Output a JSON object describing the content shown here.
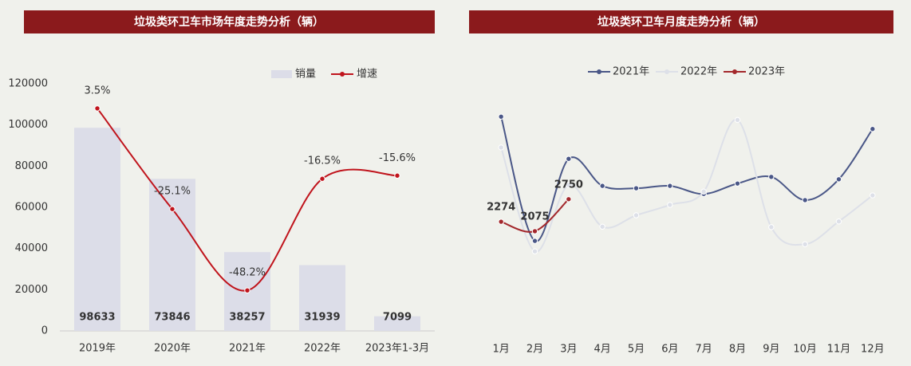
{
  "chart_data": [
    {
      "type": "bar",
      "title": "垃圾类环卫车市场年度走势分析（辆）",
      "categories": [
        "2019年",
        "2020年",
        "2021年",
        "2022年",
        "2023年1-3月"
      ],
      "series": [
        {
          "name": "销量",
          "color": "#dcdde8",
          "values": [
            98633,
            73846,
            38257,
            31939,
            7099
          ]
        },
        {
          "name": "增速",
          "type": "line",
          "axis": "y2",
          "color": "#c0141c",
          "values": [
            3.5,
            -25.1,
            -48.2,
            -16.5,
            -15.6
          ],
          "value_labels": [
            "3.5%",
            "-25.1%",
            "-48.2%",
            "-16.5%",
            "-15.6%"
          ]
        }
      ],
      "ylim": [
        0,
        120000
      ],
      "yticks": [
        0,
        20000,
        40000,
        60000,
        80000,
        100000,
        120000
      ],
      "y2lim": [
        -59.7,
        10.5
      ],
      "legend": "top-right"
    },
    {
      "type": "line",
      "title": "垃圾类环卫车月度走势分析（辆）",
      "categories": [
        "1月",
        "2月",
        "3月",
        "4月",
        "5月",
        "6月",
        "7月",
        "8月",
        "9月",
        "10月",
        "11月",
        "12月"
      ],
      "series": [
        {
          "name": "2021年",
          "color": "#4a5787",
          "values": [
            4490,
            1870,
            3600,
            3030,
            2980,
            3030,
            2860,
            3080,
            3220,
            2730,
            3170,
            4230
          ]
        },
        {
          "name": "2022年",
          "color": "#dde0e8",
          "values": [
            3840,
            1650,
            3050,
            2170,
            2410,
            2630,
            2910,
            4420,
            2160,
            1800,
            2280,
            2830
          ]
        },
        {
          "name": "2023年",
          "color": "#a3282c",
          "values": [
            2274,
            2075,
            2750,
            null,
            null,
            null,
            null,
            null,
            null,
            null,
            null,
            null
          ],
          "data_labels": true
        }
      ],
      "ylim": [
        -280,
        5100
      ],
      "legend": "top"
    }
  ]
}
